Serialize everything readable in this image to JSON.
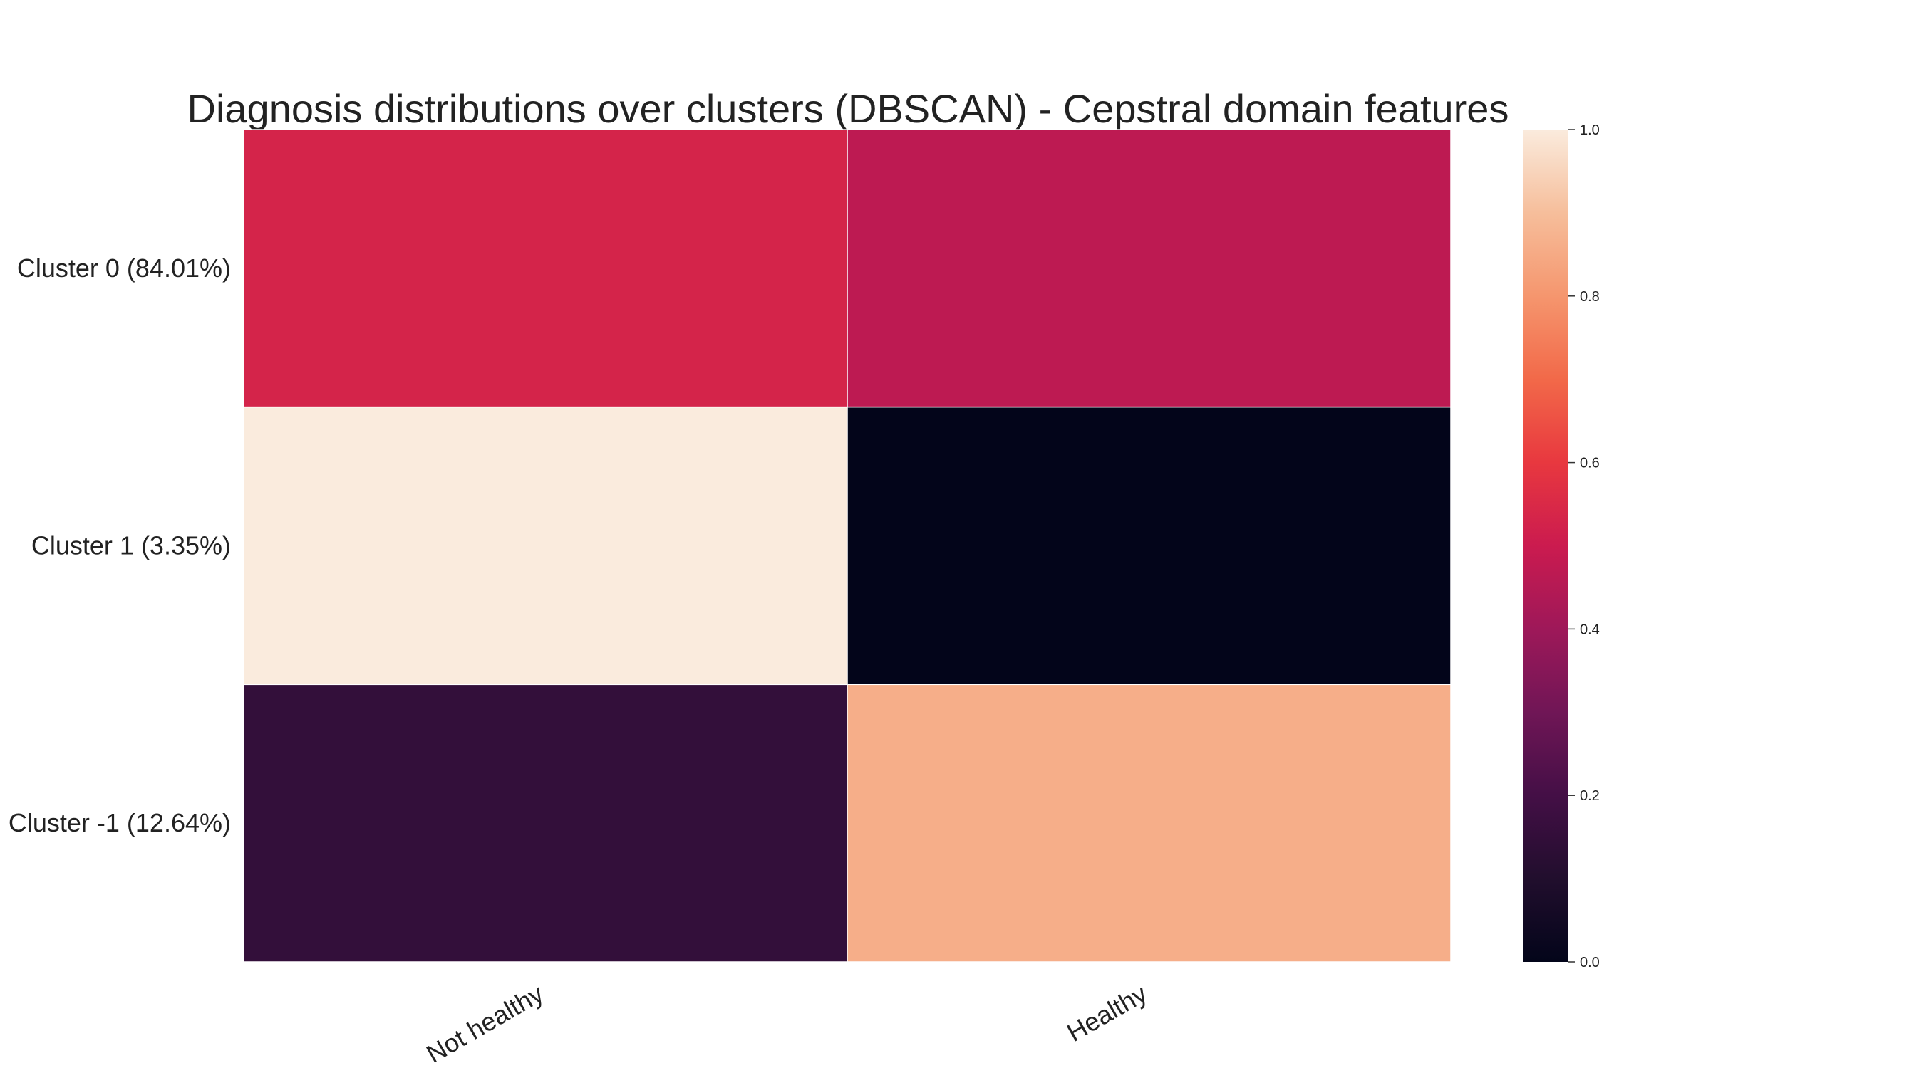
{
  "chart_data": {
    "type": "heatmap",
    "title": "Diagnosis distributions over clusters (DBSCAN) - Cepstral domain features",
    "columns": [
      "Not healthy",
      "Healthy"
    ],
    "rows": [
      "Cluster 0 (84.01%)",
      "Cluster 1 (3.35%)",
      "Cluster -1 (12.64%)"
    ],
    "values": [
      [
        0.53,
        0.47
      ],
      [
        1.0,
        0.0
      ],
      [
        0.15,
        0.86
      ]
    ],
    "colorbar": {
      "min": 0.0,
      "max": 1.0,
      "ticks": [
        "0.0",
        "0.2",
        "0.4",
        "0.6",
        "0.8",
        "1.0"
      ],
      "colormap": "rocket"
    },
    "grid": false
  }
}
